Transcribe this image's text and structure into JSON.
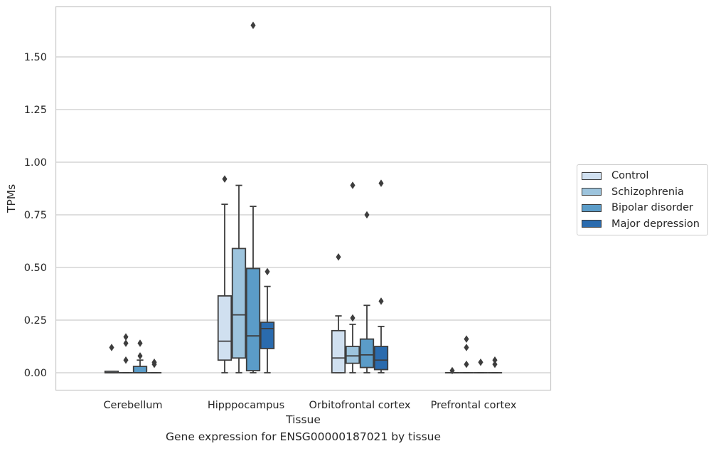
{
  "chart_data": {
    "type": "box",
    "xlabel": "Tissue",
    "ylabel": "TPMs",
    "ylim": [
      -0.08,
      1.74
    ],
    "yticks": [
      0.0,
      0.25,
      0.5,
      0.75,
      1.0,
      1.25,
      1.5
    ],
    "ytick_labels": [
      "0.00",
      "0.25",
      "0.50",
      "0.75",
      "1.00",
      "1.25",
      "1.50"
    ],
    "categories": [
      "Cerebellum",
      "Hipppocampus",
      "Orbitofrontal cortex",
      "Prefrontal cortex"
    ],
    "grid": true,
    "legend_position": "right",
    "series": [
      {
        "name": "Control",
        "color": "#d0e0f0",
        "boxes": [
          {
            "whislo": 0.0,
            "q1": 0.0,
            "med": 0.0,
            "q3": 0.007,
            "whishi": 0.007,
            "fliers": [
              0.12
            ]
          },
          {
            "whislo": 0.0,
            "q1": 0.06,
            "med": 0.15,
            "q3": 0.365,
            "whishi": 0.8,
            "fliers": [
              0.92
            ]
          },
          {
            "whislo": 0.0,
            "q1": 0.0,
            "med": 0.07,
            "q3": 0.2,
            "whishi": 0.27,
            "fliers": [
              0.55
            ]
          },
          {
            "whislo": 0.0,
            "q1": 0.0,
            "med": 0.0,
            "q3": 0.0,
            "whishi": 0.0,
            "fliers": [
              0.01
            ]
          }
        ]
      },
      {
        "name": "Schizophrenia",
        "color": "#9dc4dd",
        "boxes": [
          {
            "whislo": 0.0,
            "q1": 0.0,
            "med": 0.0,
            "q3": 0.0,
            "whishi": 0.0,
            "fliers": [
              0.06,
              0.14,
              0.17
            ]
          },
          {
            "whislo": 0.0,
            "q1": 0.07,
            "med": 0.275,
            "q3": 0.59,
            "whishi": 0.89,
            "fliers": []
          },
          {
            "whislo": 0.0,
            "q1": 0.045,
            "med": 0.08,
            "q3": 0.125,
            "whishi": 0.23,
            "fliers": [
              0.26,
              0.89
            ]
          },
          {
            "whislo": 0.0,
            "q1": 0.0,
            "med": 0.0,
            "q3": 0.0,
            "whishi": 0.0,
            "fliers": [
              0.04,
              0.12,
              0.16
            ]
          }
        ]
      },
      {
        "name": "Bipolar disorder",
        "color": "#5b9cc8",
        "boxes": [
          {
            "whislo": 0.0,
            "q1": 0.0,
            "med": 0.0,
            "q3": 0.03,
            "whishi": 0.06,
            "fliers": [
              0.08,
              0.14
            ]
          },
          {
            "whislo": 0.0,
            "q1": 0.01,
            "med": 0.175,
            "q3": 0.495,
            "whishi": 0.79,
            "fliers": [
              1.65
            ]
          },
          {
            "whislo": 0.0,
            "q1": 0.025,
            "med": 0.085,
            "q3": 0.16,
            "whishi": 0.32,
            "fliers": [
              0.75
            ]
          },
          {
            "whislo": 0.0,
            "q1": 0.0,
            "med": 0.0,
            "q3": 0.0,
            "whishi": 0.0,
            "fliers": [
              0.05
            ]
          }
        ]
      },
      {
        "name": "Major depression",
        "color": "#2a6bae",
        "boxes": [
          {
            "whislo": 0.0,
            "q1": 0.0,
            "med": 0.0,
            "q3": 0.0,
            "whishi": 0.0,
            "fliers": [
              0.04,
              0.05
            ]
          },
          {
            "whislo": 0.0,
            "q1": 0.115,
            "med": 0.21,
            "q3": 0.24,
            "whishi": 0.41,
            "fliers": [
              0.48
            ]
          },
          {
            "whislo": 0.0,
            "q1": 0.015,
            "med": 0.06,
            "q3": 0.125,
            "whishi": 0.22,
            "fliers": [
              0.34,
              0.9
            ]
          },
          {
            "whislo": 0.0,
            "q1": 0.0,
            "med": 0.0,
            "q3": 0.0,
            "whishi": 0.0,
            "fliers": [
              0.04,
              0.06
            ]
          }
        ]
      }
    ]
  },
  "caption": "Gene expression for ENSG00000187021 by tissue"
}
